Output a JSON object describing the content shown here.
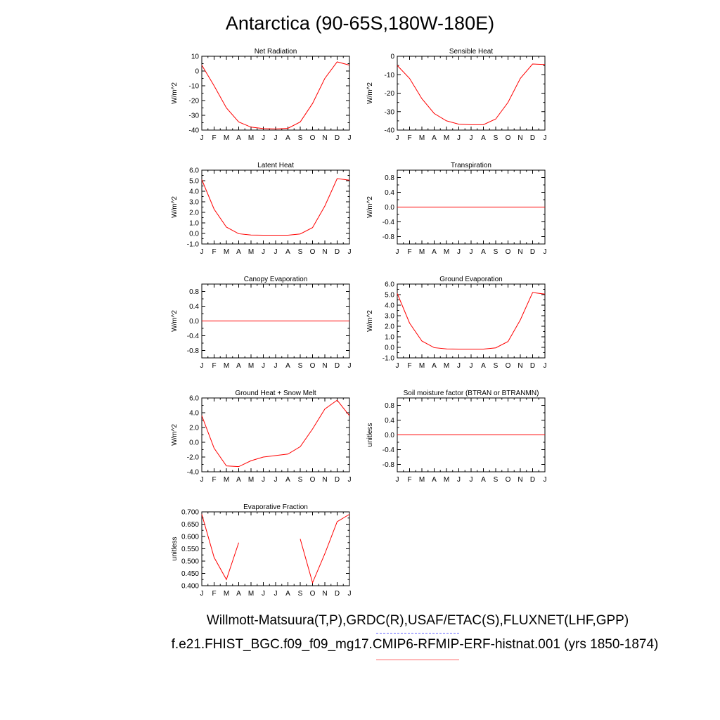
{
  "figure": {
    "title": "Antarctica (90-65S,180W-180E)",
    "footer_obs": "Willmott-Matsuura(T,P),GRDC(R),USAF/ETAC(S),FLUXNET(LHF,GPP)",
    "footer_case": "f.e21.FHIST_BGC.f09_f09_mg17.CMIP6-RFMIP-ERF-histnat.001 (yrs 1850-1874)",
    "legend": {
      "obs_color": "#6666ff",
      "case_color": "#ff6666"
    }
  },
  "chart_data": [
    {
      "type": "line",
      "title": "Net Radiation",
      "ylabel": "W/m^2",
      "x": [
        "J",
        "F",
        "M",
        "A",
        "M",
        "J",
        "J",
        "A",
        "S",
        "O",
        "N",
        "D",
        "J"
      ],
      "ylim": [
        -40,
        10
      ],
      "yticks": [
        "10",
        "0",
        "-10",
        "-20",
        "-30",
        "-40"
      ],
      "ytick_values": [
        10,
        0,
        -10,
        -20,
        -30,
        -40
      ],
      "series": [
        {
          "color": "#ff0000",
          "values": [
            4,
            -10,
            -25,
            -34.5,
            -38,
            -39,
            -39.2,
            -38.8,
            -34.5,
            -22,
            -5,
            6.2,
            4
          ]
        }
      ]
    },
    {
      "type": "line",
      "title": "Sensible Heat",
      "ylabel": "W/m^2",
      "x": [
        "J",
        "F",
        "M",
        "A",
        "M",
        "J",
        "J",
        "A",
        "S",
        "O",
        "N",
        "D",
        "J"
      ],
      "ylim": [
        -40,
        0
      ],
      "yticks": [
        "0",
        "-10",
        "-20",
        "-30",
        "-40"
      ],
      "ytick_values": [
        0,
        -10,
        -20,
        -30,
        -40
      ],
      "series": [
        {
          "color": "#ff0000",
          "values": [
            -5,
            -12,
            -23,
            -31,
            -35,
            -36.8,
            -37.1,
            -37.1,
            -34,
            -25,
            -12,
            -4.2,
            -4.5
          ]
        }
      ]
    },
    {
      "type": "line",
      "title": "Latent Heat",
      "ylabel": "W/m^2",
      "x": [
        "J",
        "F",
        "M",
        "A",
        "M",
        "J",
        "J",
        "A",
        "S",
        "O",
        "N",
        "D",
        "J"
      ],
      "ylim": [
        -1,
        6
      ],
      "yticks": [
        "6.0",
        "5.0",
        "4.0",
        "3.0",
        "2.0",
        "1.0",
        "0.0",
        "-1.0"
      ],
      "ytick_values": [
        6,
        5,
        4,
        3,
        2,
        1,
        0,
        -1
      ],
      "series": [
        {
          "color": "#ff0000",
          "values": [
            5.1,
            2.3,
            0.6,
            -0.03,
            -0.15,
            -0.17,
            -0.17,
            -0.17,
            -0.05,
            0.55,
            2.6,
            5.2,
            5.05
          ]
        }
      ]
    },
    {
      "type": "line",
      "title": "Transpiration",
      "ylabel": "W/m^2",
      "x": [
        "J",
        "F",
        "M",
        "A",
        "M",
        "J",
        "J",
        "A",
        "S",
        "O",
        "N",
        "D",
        "J"
      ],
      "ylim": [
        -1,
        1
      ],
      "yticks": [
        "0.8",
        "0.4",
        "0.0",
        "-0.4",
        "-0.8"
      ],
      "ytick_values": [
        0.8,
        0.4,
        0,
        -0.4,
        -0.8
      ],
      "series": [
        {
          "color": "#ff0000",
          "values": [
            0,
            0,
            0,
            0,
            0,
            0,
            0,
            0,
            0,
            0,
            0,
            0,
            0
          ]
        }
      ]
    },
    {
      "type": "line",
      "title": "Canopy Evaporation",
      "ylabel": "W/m^2",
      "x": [
        "J",
        "F",
        "M",
        "A",
        "M",
        "J",
        "J",
        "A",
        "S",
        "O",
        "N",
        "D",
        "J"
      ],
      "ylim": [
        -1,
        1
      ],
      "yticks": [
        "0.8",
        "0.4",
        "0.0",
        "-0.4",
        "-0.8"
      ],
      "ytick_values": [
        0.8,
        0.4,
        0,
        -0.4,
        -0.8
      ],
      "series": [
        {
          "color": "#ff0000",
          "values": [
            0,
            0,
            0,
            0,
            0,
            0,
            0,
            0,
            0,
            0,
            0,
            0,
            0
          ]
        }
      ]
    },
    {
      "type": "line",
      "title": "Ground Evaporation",
      "ylabel": "W/m^2",
      "x": [
        "J",
        "F",
        "M",
        "A",
        "M",
        "J",
        "J",
        "A",
        "S",
        "O",
        "N",
        "D",
        "J"
      ],
      "ylim": [
        -1,
        6
      ],
      "yticks": [
        "6.0",
        "5.0",
        "4.0",
        "3.0",
        "2.0",
        "1.0",
        "0.0",
        "-1.0"
      ],
      "ytick_values": [
        6,
        5,
        4,
        3,
        2,
        1,
        0,
        -1
      ],
      "series": [
        {
          "color": "#ff0000",
          "values": [
            5.1,
            2.3,
            0.6,
            -0.03,
            -0.15,
            -0.17,
            -0.17,
            -0.17,
            -0.05,
            0.55,
            2.6,
            5.2,
            5.05
          ]
        }
      ]
    },
    {
      "type": "line",
      "title": "Ground Heat + Snow Melt",
      "ylabel": "W/m^2",
      "x": [
        "J",
        "F",
        "M",
        "A",
        "M",
        "J",
        "J",
        "A",
        "S",
        "O",
        "N",
        "D",
        "J"
      ],
      "ylim": [
        -4,
        6
      ],
      "yticks": [
        "6.0",
        "4.0",
        "2.0",
        "0.0",
        "-2.0",
        "-4.0"
      ],
      "ytick_values": [
        6,
        4,
        2,
        0,
        -2,
        -4
      ],
      "series": [
        {
          "color": "#ff0000",
          "values": [
            3.6,
            -0.8,
            -3.2,
            -3.3,
            -2.5,
            -2.0,
            -1.8,
            -1.6,
            -0.6,
            1.8,
            4.5,
            5.7,
            3.6
          ]
        }
      ]
    },
    {
      "type": "line",
      "title": "Soil moisture factor (BTRAN or BTRANMN)",
      "ylabel": "unitless",
      "x": [
        "J",
        "F",
        "M",
        "A",
        "M",
        "J",
        "J",
        "A",
        "S",
        "O",
        "N",
        "D",
        "J"
      ],
      "ylim": [
        -1,
        1
      ],
      "yticks": [
        "0.8",
        "0.4",
        "0.0",
        "-0.4",
        "-0.8"
      ],
      "ytick_values": [
        0.8,
        0.4,
        0,
        -0.4,
        -0.8
      ],
      "series": [
        {
          "color": "#ff0000",
          "values": [
            0,
            0,
            0,
            0,
            0,
            0,
            0,
            0,
            0,
            0,
            0,
            0,
            0
          ]
        }
      ]
    },
    {
      "type": "line",
      "title": "Evaporative Fraction",
      "ylabel": "unitless",
      "x": [
        "J",
        "F",
        "M",
        "A",
        "M",
        "J",
        "J",
        "A",
        "S",
        "O",
        "N",
        "D",
        "J"
      ],
      "ylim": [
        0.4,
        0.7
      ],
      "yticks": [
        "0.700",
        "0.650",
        "0.600",
        "0.550",
        "0.500",
        "0.450",
        "0.400"
      ],
      "ytick_values": [
        0.7,
        0.65,
        0.6,
        0.55,
        0.5,
        0.45,
        0.4
      ],
      "series": [
        {
          "color": "#ff0000",
          "values": [
            0.69,
            0.515,
            0.425,
            0.575,
            null,
            null,
            null,
            null,
            0.59,
            0.412,
            0.53,
            0.66,
            0.69
          ]
        }
      ]
    }
  ]
}
